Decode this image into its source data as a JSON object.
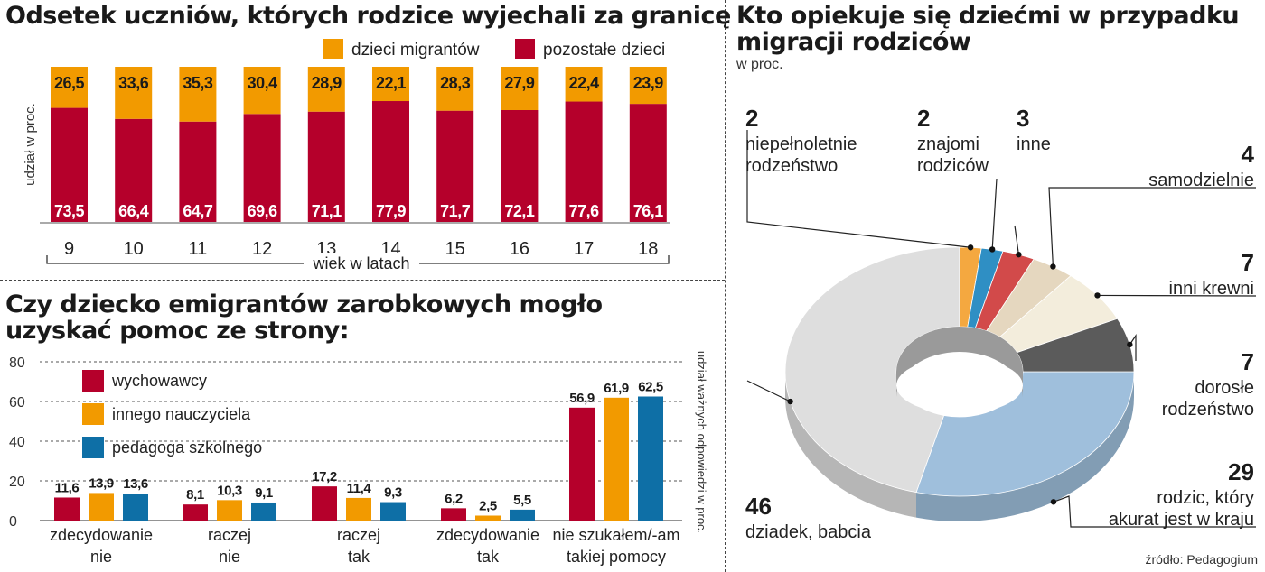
{
  "chart_data": [
    {
      "type": "bar",
      "stacked": true,
      "title": "Odsetek uczniów, których rodzice wyjechali za granicę",
      "ylabel": "udział w proc.",
      "xlabel": "wiek w latach",
      "categories": [
        "9",
        "10",
        "11",
        "12",
        "13",
        "14",
        "15",
        "16",
        "17",
        "18"
      ],
      "series": [
        {
          "name": "pozostałe dzieci",
          "color": "#b5002b",
          "values": [
            73.5,
            66.4,
            64.7,
            69.6,
            71.1,
            77.9,
            71.7,
            72.1,
            77.6,
            76.1
          ],
          "labels": [
            "73,5",
            "66,4",
            "64,7",
            "69,6",
            "71,1",
            "77,9",
            "71,7",
            "72,1",
            "77,6",
            "76,1"
          ]
        },
        {
          "name": "dzieci migrantów",
          "color": "#f29a00",
          "values": [
            26.5,
            33.6,
            35.3,
            30.4,
            28.9,
            22.1,
            28.3,
            27.9,
            22.4,
            23.9
          ],
          "labels": [
            "26,5",
            "33,6",
            "35,3",
            "30,4",
            "28,9",
            "22,1",
            "28,3",
            "27,9",
            "22,4",
            "23,9"
          ]
        }
      ],
      "ylim": [
        0,
        100
      ],
      "legend_position": "top-right",
      "grid": false
    },
    {
      "type": "bar",
      "title": "Czy dziecko emigrantów zarobkowych mogło uzyskać pomoc ze strony:",
      "ylabel": "udział ważnych odpowiedzi w proc.",
      "categories": [
        [
          "zdecydowanie",
          "nie"
        ],
        [
          "raczej",
          "nie"
        ],
        [
          "raczej",
          "tak"
        ],
        [
          "zdecydowanie",
          "tak"
        ],
        [
          "nie szukałem/-am",
          "takiej pomocy"
        ]
      ],
      "yticks": [
        "0",
        "20",
        "40",
        "60",
        "80"
      ],
      "ylim": [
        0,
        80
      ],
      "series": [
        {
          "name": "wychowawcy",
          "color": "#b5002b",
          "values": [
            11.6,
            8.1,
            17.2,
            6.2,
            56.9
          ],
          "labels": [
            "11,6",
            "8,1",
            "17,2",
            "6,2",
            "56,9"
          ]
        },
        {
          "name": "innego nauczyciela",
          "color": "#f29a00",
          "values": [
            13.9,
            10.3,
            11.4,
            2.5,
            61.9
          ],
          "labels": [
            "13,9",
            "10,3",
            "11,4",
            "2,5",
            "61,9"
          ]
        },
        {
          "name": "pedagoga szkolnego",
          "color": "#0e6fa6",
          "values": [
            13.6,
            9.1,
            9.3,
            5.5,
            62.5
          ],
          "labels": [
            "13,6",
            "9,1",
            "9,3",
            "5,5",
            "62,5"
          ]
        }
      ],
      "legend_position": "top-left",
      "grid": true
    },
    {
      "type": "pie",
      "style": "3d-donut",
      "title": "Kto opiekuje się dziećmi w przypadku migracji rodziców",
      "subtitle": "w proc.",
      "source": "źródło: Pedagogium",
      "slices": [
        {
          "value": 29,
          "label": "29",
          "name": [
            "rodzic, który",
            "akurat jest w kraju"
          ],
          "color": "#9fbfdc"
        },
        {
          "value": 46,
          "label": "46",
          "name": [
            "dziadek, babcia"
          ],
          "color": "#dedede"
        },
        {
          "value": 2,
          "label": "2",
          "name": [
            "niepełnoletnie",
            "rodzeństwo"
          ],
          "color": "#f4a840"
        },
        {
          "value": 2,
          "label": "2",
          "name": [
            "znajomi",
            "rodziców"
          ],
          "color": "#2f8fc4"
        },
        {
          "value": 3,
          "label": "3",
          "name": [
            "inne"
          ],
          "color": "#d24a4a"
        },
        {
          "value": 4,
          "label": "4",
          "name": [
            "samodzielnie"
          ],
          "color": "#e5d7bf"
        },
        {
          "value": 7,
          "label": "7",
          "name": [
            "inni krewni"
          ],
          "color": "#f3eddc"
        },
        {
          "value": 7,
          "label": "7",
          "name": [
            "dorosłe",
            "rodzeństwo"
          ],
          "color": "#5b5b5b"
        }
      ]
    }
  ]
}
